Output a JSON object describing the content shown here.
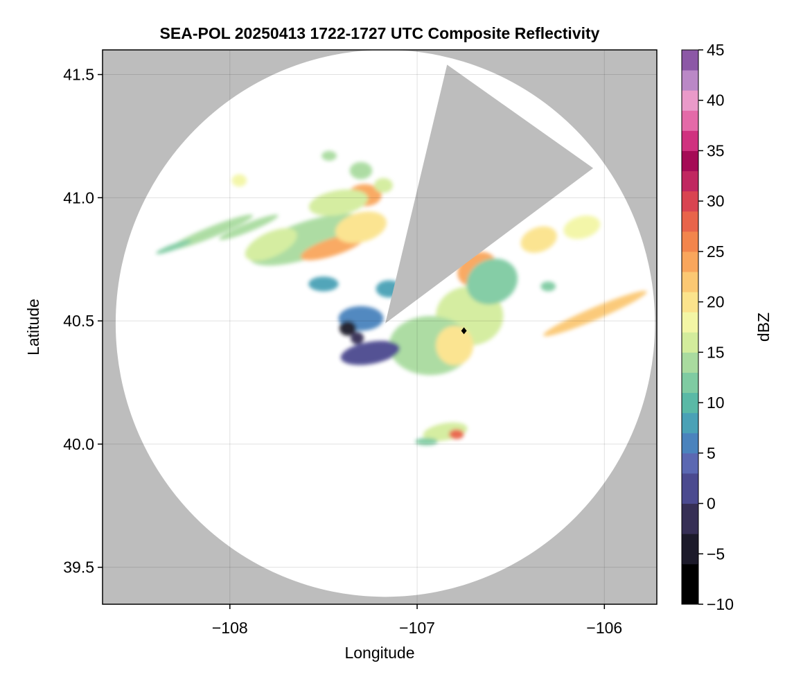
{
  "chart_data": {
    "type": "heatmap",
    "title": "SEA-POL 20250413 1722-1727 UTC Composite Reflectivity",
    "xlabel": "Longitude",
    "ylabel": "Latitude",
    "xlim": [
      -108.68,
      -105.72
    ],
    "ylim": [
      39.35,
      41.6
    ],
    "xticks": [
      -108,
      -107,
      -106
    ],
    "xtick_labels": [
      "−108",
      "−107",
      "−106"
    ],
    "yticks": [
      39.5,
      40.0,
      40.5,
      41.0,
      41.5
    ],
    "ytick_labels": [
      "39.5",
      "40.0",
      "40.5",
      "41.0",
      "41.5"
    ],
    "grid": true,
    "background_color": "#bdbdbd",
    "radar": {
      "center_lon": -107.17,
      "center_lat": 40.49,
      "range_deg_lon": 1.44,
      "range_deg_lat": 1.11,
      "blocked_sector_lon_lat": [
        [
          -107.17,
          40.49
        ],
        [
          -106.84,
          41.54
        ],
        [
          -106.06,
          41.12
        ]
      ],
      "coverage_color": "#ffffff"
    },
    "colorbar": {
      "label": "dBZ",
      "min": -10,
      "max": 45,
      "ticks": [
        -10,
        -5,
        0,
        5,
        10,
        15,
        20,
        25,
        30,
        35,
        40,
        45
      ],
      "tick_labels": [
        "−10",
        "−5",
        "0",
        "5",
        "10",
        "15",
        "20",
        "25",
        "30",
        "35",
        "40",
        "45"
      ],
      "colormap": "Spectral_r (black to dark purple at low end, magenta/purple at high end)",
      "colors": [
        [
          -10,
          "#000000"
        ],
        [
          -6,
          "#1c1a2a"
        ],
        [
          -3,
          "#362f55"
        ],
        [
          0,
          "#4b4a8f"
        ],
        [
          3,
          "#5b68b2"
        ],
        [
          5,
          "#4a83bd"
        ],
        [
          7,
          "#4aa1b6"
        ],
        [
          9,
          "#5ab9a6"
        ],
        [
          11,
          "#7fcba2"
        ],
        [
          13,
          "#a9db9f"
        ],
        [
          15,
          "#d3ec9c"
        ],
        [
          17,
          "#f3f6a5"
        ],
        [
          19,
          "#fbe38c"
        ],
        [
          21,
          "#fbc873"
        ],
        [
          23,
          "#f9a65c"
        ],
        [
          25,
          "#f2854c"
        ],
        [
          27,
          "#e8644a"
        ],
        [
          29,
          "#d94451"
        ],
        [
          31,
          "#c02760"
        ],
        [
          33,
          "#a50b56"
        ],
        [
          35,
          "#d0317f"
        ],
        [
          37,
          "#e46aa8"
        ],
        [
          39,
          "#ea9ac9"
        ],
        [
          41,
          "#ba88c6"
        ],
        [
          43,
          "#8c58a6"
        ],
        [
          45,
          "#4a0f5a"
        ]
      ]
    },
    "marker": {
      "lon": -106.75,
      "lat": 40.46,
      "symbol": "diamond"
    },
    "echoes": [
      {
        "lon": -107.58,
        "lat": 40.83,
        "rlon": 0.33,
        "rlat": 0.075,
        "angle": -18,
        "dbz": 14
      },
      {
        "lon": -107.45,
        "lat": 40.8,
        "rlon": 0.18,
        "rlat": 0.035,
        "angle": -18,
        "dbz": 24
      },
      {
        "lon": -107.3,
        "lat": 40.88,
        "rlon": 0.14,
        "rlat": 0.06,
        "angle": -15,
        "dbz": 20
      },
      {
        "lon": -107.28,
        "lat": 41.01,
        "rlon": 0.09,
        "rlat": 0.045,
        "angle": 0,
        "dbz": 24
      },
      {
        "lon": -107.42,
        "lat": 40.98,
        "rlon": 0.16,
        "rlat": 0.05,
        "angle": -10,
        "dbz": 15
      },
      {
        "lon": -108.1,
        "lat": 40.86,
        "rlon": 0.24,
        "rlat": 0.022,
        "angle": -22,
        "dbz": 14
      },
      {
        "lon": -107.9,
        "lat": 40.88,
        "rlon": 0.17,
        "rlat": 0.018,
        "angle": -22,
        "dbz": 13
      },
      {
        "lon": -108.3,
        "lat": 40.8,
        "rlon": 0.1,
        "rlat": 0.012,
        "angle": -20,
        "dbz": 12
      },
      {
        "lon": -107.95,
        "lat": 41.07,
        "rlon": 0.04,
        "rlat": 0.025,
        "angle": 0,
        "dbz": 17
      },
      {
        "lon": -107.78,
        "lat": 40.81,
        "rlon": 0.15,
        "rlat": 0.05,
        "angle": -25,
        "dbz": 16
      },
      {
        "lon": -106.72,
        "lat": 40.52,
        "rlon": 0.18,
        "rlat": 0.12,
        "angle": 0,
        "dbz": 16
      },
      {
        "lon": -106.93,
        "lat": 40.4,
        "rlon": 0.22,
        "rlat": 0.12,
        "angle": 0,
        "dbz": 14
      },
      {
        "lon": -106.8,
        "lat": 40.4,
        "rlon": 0.1,
        "rlat": 0.08,
        "angle": 0,
        "dbz": 19
      },
      {
        "lon": -106.68,
        "lat": 40.71,
        "rlon": 0.11,
        "rlat": 0.065,
        "angle": -30,
        "dbz": 23
      },
      {
        "lon": -106.6,
        "lat": 40.66,
        "rlon": 0.14,
        "rlat": 0.09,
        "angle": -25,
        "dbz": 12
      },
      {
        "lon": -106.35,
        "lat": 40.83,
        "rlon": 0.1,
        "rlat": 0.05,
        "angle": -20,
        "dbz": 20
      },
      {
        "lon": -106.12,
        "lat": 40.88,
        "rlon": 0.1,
        "rlat": 0.045,
        "angle": -15,
        "dbz": 18
      },
      {
        "lon": -106.05,
        "lat": 40.53,
        "rlon": 0.3,
        "rlat": 0.025,
        "angle": -23,
        "dbz": 22
      },
      {
        "lon": -107.25,
        "lat": 40.37,
        "rlon": 0.16,
        "rlat": 0.045,
        "angle": -10,
        "dbz": 2
      },
      {
        "lon": -107.3,
        "lat": 40.51,
        "rlon": 0.12,
        "rlat": 0.05,
        "angle": 0,
        "dbz": 6
      },
      {
        "lon": -107.37,
        "lat": 40.47,
        "rlon": 0.045,
        "rlat": 0.03,
        "angle": 0,
        "dbz": -4
      },
      {
        "lon": -107.32,
        "lat": 40.43,
        "rlon": 0.035,
        "rlat": 0.025,
        "angle": 0,
        "dbz": -2
      },
      {
        "lon": -106.85,
        "lat": 40.05,
        "rlon": 0.12,
        "rlat": 0.035,
        "angle": -10,
        "dbz": 16
      },
      {
        "lon": -106.79,
        "lat": 40.04,
        "rlon": 0.04,
        "rlat": 0.02,
        "angle": 0,
        "dbz": 27
      },
      {
        "lon": -106.95,
        "lat": 40.01,
        "rlon": 0.06,
        "rlat": 0.015,
        "angle": 0,
        "dbz": 12
      },
      {
        "lon": -107.3,
        "lat": 41.11,
        "rlon": 0.06,
        "rlat": 0.035,
        "angle": 0,
        "dbz": 14
      },
      {
        "lon": -107.18,
        "lat": 41.05,
        "rlon": 0.05,
        "rlat": 0.03,
        "angle": 0,
        "dbz": 16
      },
      {
        "lon": -107.47,
        "lat": 41.17,
        "rlon": 0.04,
        "rlat": 0.02,
        "angle": 0,
        "dbz": 13
      },
      {
        "lon": -106.3,
        "lat": 40.64,
        "rlon": 0.04,
        "rlat": 0.02,
        "angle": 0,
        "dbz": 12
      },
      {
        "lon": -107.5,
        "lat": 40.65,
        "rlon": 0.08,
        "rlat": 0.03,
        "angle": 0,
        "dbz": 7
      },
      {
        "lon": -107.15,
        "lat": 40.63,
        "rlon": 0.07,
        "rlat": 0.035,
        "angle": 0,
        "dbz": 8
      }
    ]
  }
}
